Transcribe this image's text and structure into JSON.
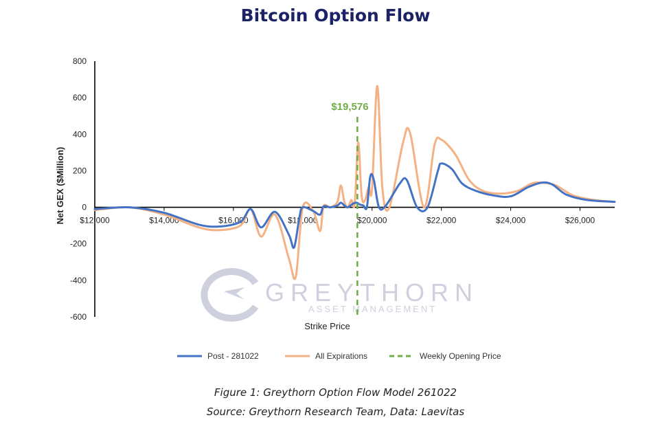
{
  "page": {
    "title": "Bitcoin Option Flow",
    "caption_line1": "Figure 1: Greythorn Option Flow Model 261022",
    "caption_line2": "Source: Greythorn Research Team, Data: Laevitas"
  },
  "watermark": {
    "brand": "GREYTHORN",
    "tagline": "ASSET MANAGEMENT",
    "logo_icon": "greythorn-g-arrow-logo"
  },
  "chart_data": {
    "type": "line",
    "title": "",
    "xlabel": "Strike Price",
    "ylabel": "Net GEX ($Million)",
    "xlim": [
      12000,
      27000
    ],
    "ylim": [
      -600,
      800
    ],
    "x_ticks": [
      12000,
      14000,
      16000,
      18000,
      20000,
      22000,
      24000,
      26000
    ],
    "x_tick_labels": [
      "$12,000",
      "$14,000",
      "$16,000",
      "$18,000",
      "$20,000",
      "$22,000",
      "$24,000",
      "$26,000"
    ],
    "y_ticks": [
      -600,
      -400,
      -200,
      0,
      200,
      400,
      600,
      800
    ],
    "y_tick_labels": [
      "-600",
      "-400",
      "-200",
      "0",
      "200",
      "400",
      "600",
      "800"
    ],
    "grid": false,
    "legend_position": "bottom",
    "series": [
      {
        "name": "Post - 281022",
        "color": "#4472c4",
        "points": [
          [
            12000,
            -10
          ],
          [
            13000,
            0
          ],
          [
            14000,
            -30
          ],
          [
            15000,
            -95
          ],
          [
            15600,
            -105
          ],
          [
            16200,
            -80
          ],
          [
            16500,
            -10
          ],
          [
            16800,
            -110
          ],
          [
            17200,
            -25
          ],
          [
            17600,
            -150
          ],
          [
            17750,
            -220
          ],
          [
            17900,
            -60
          ],
          [
            18000,
            0
          ],
          [
            18300,
            -20
          ],
          [
            18500,
            -40
          ],
          [
            18600,
            5
          ],
          [
            18800,
            0
          ],
          [
            19000,
            10
          ],
          [
            19100,
            25
          ],
          [
            19200,
            10
          ],
          [
            19300,
            0
          ],
          [
            19450,
            20
          ],
          [
            19550,
            25
          ],
          [
            19650,
            15
          ],
          [
            19750,
            10
          ],
          [
            19850,
            0
          ],
          [
            19950,
            170
          ],
          [
            20050,
            150
          ],
          [
            20200,
            0
          ],
          [
            20400,
            10
          ],
          [
            20800,
            130
          ],
          [
            21000,
            150
          ],
          [
            21300,
            0
          ],
          [
            21600,
            0
          ],
          [
            21900,
            200
          ],
          [
            22000,
            240
          ],
          [
            22300,
            210
          ],
          [
            22600,
            130
          ],
          [
            23000,
            90
          ],
          [
            23500,
            65
          ],
          [
            24000,
            60
          ],
          [
            24500,
            110
          ],
          [
            24900,
            135
          ],
          [
            25200,
            125
          ],
          [
            25600,
            70
          ],
          [
            26200,
            40
          ],
          [
            27000,
            30
          ]
        ]
      },
      {
        "name": "All Expirations",
        "color": "#f4b183",
        "points": [
          [
            12000,
            -15
          ],
          [
            13000,
            0
          ],
          [
            14000,
            -40
          ],
          [
            15000,
            -110
          ],
          [
            15600,
            -125
          ],
          [
            16200,
            -100
          ],
          [
            16500,
            -10
          ],
          [
            16800,
            -160
          ],
          [
            17200,
            -40
          ],
          [
            17600,
            -280
          ],
          [
            17800,
            -380
          ],
          [
            18000,
            0
          ],
          [
            18300,
            -20
          ],
          [
            18500,
            -130
          ],
          [
            18600,
            5
          ],
          [
            18800,
            0
          ],
          [
            19000,
            30
          ],
          [
            19100,
            120
          ],
          [
            19200,
            30
          ],
          [
            19300,
            0
          ],
          [
            19400,
            40
          ],
          [
            19500,
            20
          ],
          [
            19600,
            355
          ],
          [
            19700,
            60
          ],
          [
            19800,
            40
          ],
          [
            19900,
            110
          ],
          [
            20000,
            100
          ],
          [
            20150,
            665
          ],
          [
            20300,
            100
          ],
          [
            20500,
            0
          ],
          [
            20900,
            360
          ],
          [
            21100,
            405
          ],
          [
            21500,
            0
          ],
          [
            21800,
            340
          ],
          [
            22000,
            370
          ],
          [
            22400,
            290
          ],
          [
            22800,
            150
          ],
          [
            23200,
            90
          ],
          [
            23700,
            75
          ],
          [
            24200,
            90
          ],
          [
            24600,
            130
          ],
          [
            24900,
            135
          ],
          [
            25300,
            120
          ],
          [
            25800,
            65
          ],
          [
            26400,
            40
          ],
          [
            27000,
            30
          ]
        ]
      }
    ],
    "reference_line": {
      "name": "Weekly Opening Price",
      "x": 19576,
      "label": "$19,576",
      "color": "#70ad47",
      "style": "dashed"
    }
  }
}
